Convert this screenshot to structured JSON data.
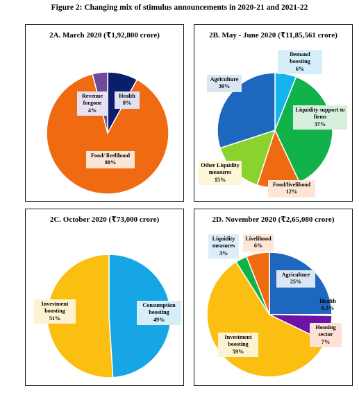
{
  "figure_title": "Figure 2: Changing mix of stimulus announcements in 2020-21 and 2021-22",
  "chart_data": [
    {
      "type": "pie",
      "title": "2A. March 2020 (₹1,92,800 crore)",
      "slices": [
        {
          "label": "Health",
          "pct_label": "8%",
          "value": 8,
          "color": "#0b1e6e",
          "label_bg": "#dfe3f1"
        },
        {
          "label": "Food/ livelihood",
          "pct_label": "88%",
          "value": 88,
          "color": "#ef6a10",
          "label_bg": "#fde6d6"
        },
        {
          "label": "Revenue forgone",
          "pct_label": "4%",
          "value": 4,
          "color": "#6e4a9a",
          "label_bg": "#e8e1f1"
        }
      ]
    },
    {
      "type": "pie",
      "title": "2B. May - June 2020 (₹11,85,561 crore)",
      "slices": [
        {
          "label": "Demand boosting",
          "pct_label": "6%",
          "value": 6,
          "color": "#16b4ee",
          "label_bg": "#d5eef9"
        },
        {
          "label": "Liquidity support to firms",
          "pct_label": "37%",
          "value": 37,
          "color": "#12b24a",
          "label_bg": "#d6f0dd"
        },
        {
          "label": "Food/livelihood",
          "pct_label": "12%",
          "value": 12,
          "color": "#ef6a10",
          "label_bg": "#fde6d6"
        },
        {
          "label": "Other Liquidity measures",
          "pct_label": "15%",
          "value": 15,
          "color": "#8bd22e",
          "label_bg": "#fdf6d8"
        },
        {
          "label": "Agriculture",
          "pct_label": "30%",
          "value": 30,
          "color": "#1e67be",
          "label_bg": "#dce6f3"
        }
      ]
    },
    {
      "type": "pie",
      "title": "2C. October 2020 (₹73,000 crore)",
      "slices": [
        {
          "label": "Consumption boosting",
          "pct_label": "49%",
          "value": 49,
          "color": "#16a6e6",
          "label_bg": "#d5eef9"
        },
        {
          "label": "Investment boosting",
          "pct_label": "51%",
          "value": 51,
          "color": "#fbbf12",
          "label_bg": "#fdf3d2"
        }
      ]
    },
    {
      "type": "pie",
      "title": "2D. November 2020 (₹2,65,080 crore)",
      "slices": [
        {
          "label": "Agriculture",
          "pct_label": "25%",
          "value": 25,
          "color": "#1e67be",
          "label_bg": "#dce6f3"
        },
        {
          "label": "Health",
          "pct_label": "0.3%",
          "value": 0.3,
          "color": "#0b1e6e",
          "label_bg": ""
        },
        {
          "label": "Housing sector",
          "pct_label": "7%",
          "value": 7,
          "color": "#6f12a8",
          "label_bg": "#fde1d6"
        },
        {
          "label": "Investment boosting",
          "pct_label": "59%",
          "value": 59,
          "color": "#fbbf12",
          "label_bg": "#fdf3d2"
        },
        {
          "label": "Liquidity measures",
          "pct_label": "3%",
          "value": 3,
          "color": "#12b24a",
          "label_bg": "#dcecf8"
        },
        {
          "label": "Livelihood",
          "pct_label": "6%",
          "value": 6,
          "color": "#ef6a10",
          "label_bg": "#fde6d6"
        }
      ]
    }
  ]
}
